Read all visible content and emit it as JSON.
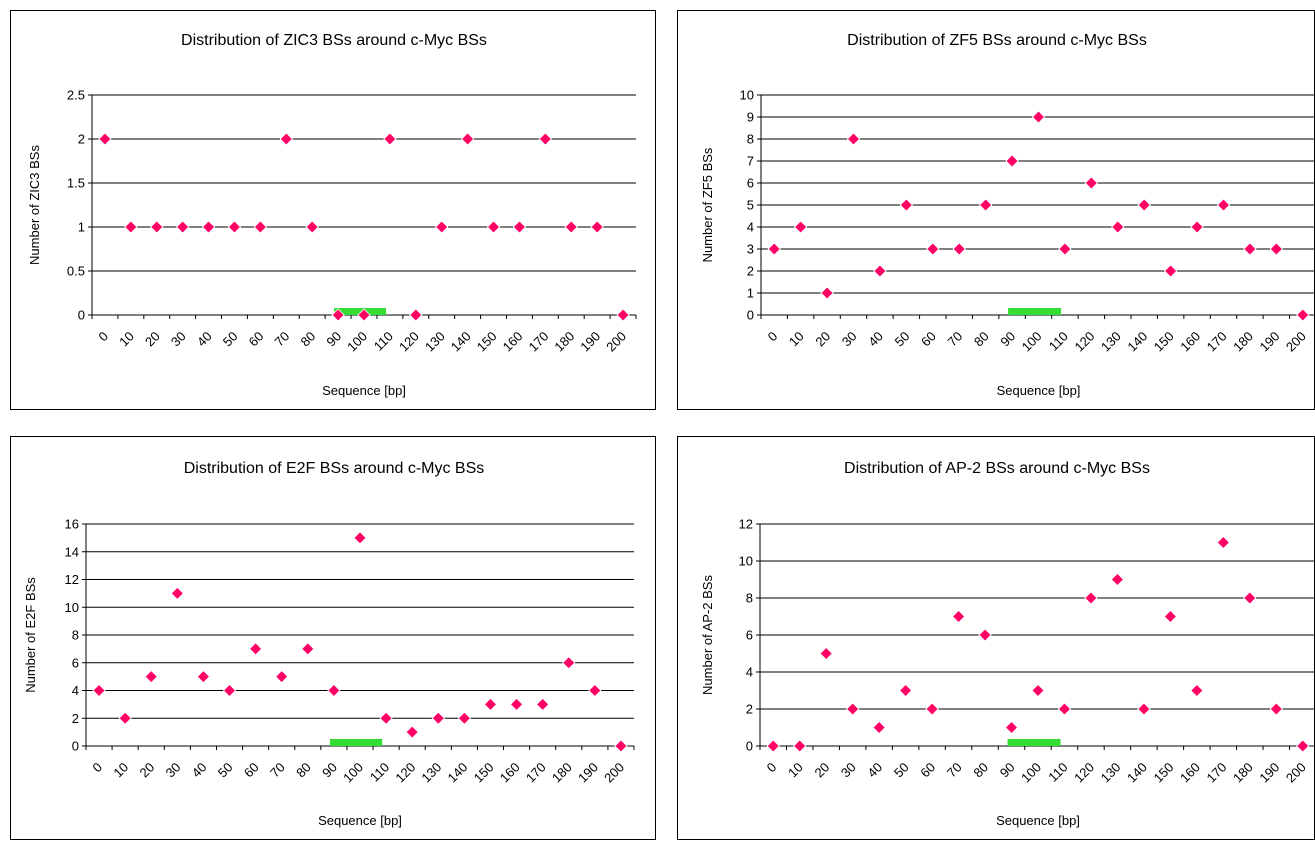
{
  "chart_data": [
    {
      "type": "scatter",
      "title": "Distribution of ZIC3 BSs around c-Myc BSs",
      "xlabel": "Sequence [bp]",
      "ylabel": "Number of ZIC3 BSs",
      "categories": [
        "0",
        "10",
        "20",
        "30",
        "40",
        "50",
        "60",
        "70",
        "80",
        "90",
        "100",
        "110",
        "120",
        "130",
        "140",
        "150",
        "160",
        "170",
        "180",
        "190",
        "200"
      ],
      "y_ticks": [
        "0",
        "0.5",
        "1",
        "1.5",
        "2",
        "2.5"
      ],
      "ylim": [
        0,
        2.5
      ],
      "values": [
        2,
        1,
        1,
        1,
        1,
        1,
        1,
        2,
        1,
        0,
        0,
        2,
        0,
        1,
        2,
        1,
        1,
        2,
        1,
        1,
        0
      ],
      "grid": true,
      "marker_color": "#ff0066",
      "highlight_bar": {
        "from_index": 9,
        "to_index": 11,
        "color": "#33dd33"
      }
    },
    {
      "type": "scatter",
      "title": "Distribution of ZF5 BSs around c-Myc BSs",
      "xlabel": "Sequence [bp]",
      "ylabel": "Number of ZF5 BSs",
      "categories": [
        "0",
        "10",
        "20",
        "30",
        "40",
        "50",
        "60",
        "70",
        "80",
        "90",
        "100",
        "110",
        "120",
        "130",
        "140",
        "150",
        "160",
        "170",
        "180",
        "190",
        "200"
      ],
      "y_ticks": [
        "0",
        "1",
        "2",
        "3",
        "4",
        "5",
        "6",
        "7",
        "8",
        "9",
        "10"
      ],
      "ylim": [
        0,
        10
      ],
      "values": [
        3,
        4,
        1,
        8,
        2,
        5,
        3,
        3,
        5,
        7,
        9,
        3,
        6,
        4,
        5,
        2,
        4,
        5,
        3,
        3,
        0
      ],
      "grid": true,
      "marker_color": "#ff0066",
      "highlight_bar": {
        "from_index": 9,
        "to_index": 11,
        "color": "#33dd33"
      }
    },
    {
      "type": "scatter",
      "title": "Distribution of E2F BSs around c-Myc BSs",
      "xlabel": "Sequence [bp]",
      "ylabel": "Number of E2F BSs",
      "categories": [
        "0",
        "10",
        "20",
        "30",
        "40",
        "50",
        "60",
        "70",
        "80",
        "90",
        "100",
        "110",
        "120",
        "130",
        "140",
        "150",
        "160",
        "170",
        "180",
        "190",
        "200"
      ],
      "y_ticks": [
        "0",
        "2",
        "4",
        "6",
        "8",
        "10",
        "12",
        "14",
        "16"
      ],
      "ylim": [
        0,
        16
      ],
      "values": [
        4,
        2,
        5,
        11,
        5,
        4,
        7,
        5,
        7,
        4,
        15,
        2,
        1,
        2,
        2,
        3,
        3,
        3,
        6,
        4,
        0
      ],
      "grid": true,
      "marker_color": "#ff0066",
      "highlight_bar": {
        "from_index": 9,
        "to_index": 11,
        "color": "#33dd33"
      }
    },
    {
      "type": "scatter",
      "title": "Distribution of AP-2 BSs around c-Myc BSs",
      "xlabel": "Sequence [bp]",
      "ylabel": "Number of AP-2 BSs",
      "categories": [
        "0",
        "10",
        "20",
        "30",
        "40",
        "50",
        "60",
        "70",
        "80",
        "90",
        "100",
        "110",
        "120",
        "130",
        "140",
        "150",
        "160",
        "170",
        "180",
        "190",
        "200"
      ],
      "y_ticks": [
        "0",
        "2",
        "4",
        "6",
        "8",
        "10",
        "12"
      ],
      "ylim": [
        0,
        12
      ],
      "values": [
        0,
        0,
        5,
        2,
        1,
        3,
        2,
        7,
        6,
        1,
        3,
        2,
        8,
        9,
        2,
        7,
        3,
        11,
        8,
        2,
        0
      ],
      "grid": true,
      "marker_color": "#ff0066",
      "highlight_bar": {
        "from_index": 9,
        "to_index": 11,
        "color": "#33dd33"
      }
    }
  ]
}
